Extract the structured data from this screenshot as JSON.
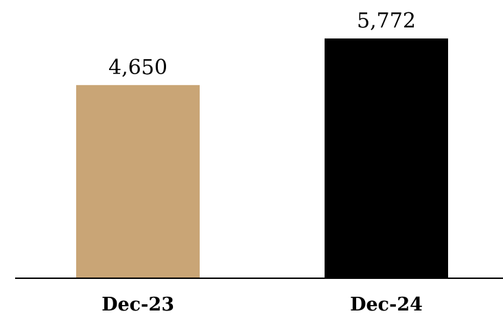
{
  "chart_data": {
    "type": "bar",
    "categories": [
      "Dec-23",
      "Dec-24"
    ],
    "values": [
      4650,
      5772
    ],
    "value_labels": [
      "4,650",
      "5,772"
    ],
    "colors": [
      "#C9A576",
      "#000000"
    ],
    "title": "",
    "xlabel": "",
    "ylabel": "",
    "ylim": [
      0,
      5772
    ],
    "grid": false,
    "legend": "none"
  }
}
